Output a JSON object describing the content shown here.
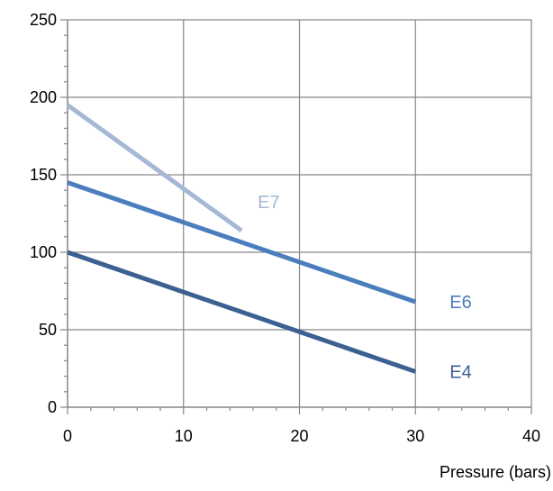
{
  "chart_data": {
    "type": "line",
    "title": "",
    "xlabel": "Pressure (bars)",
    "ylabel": "",
    "xlim": [
      0,
      40
    ],
    "ylim": [
      0,
      250
    ],
    "xticks": [
      0,
      10,
      20,
      30,
      40
    ],
    "yticks": [
      0,
      50,
      100,
      150,
      200,
      250
    ],
    "grid": true,
    "legend": "none",
    "series": [
      {
        "name": "E7",
        "color": "#a5b8d6",
        "x": [
          0,
          15
        ],
        "y": [
          195,
          114
        ]
      },
      {
        "name": "E6",
        "color": "#4a7ebd",
        "x": [
          0,
          30
        ],
        "y": [
          145,
          68
        ]
      },
      {
        "name": "E4",
        "color": "#3b6091",
        "x": [
          0,
          30
        ],
        "y": [
          100,
          23
        ]
      }
    ]
  }
}
